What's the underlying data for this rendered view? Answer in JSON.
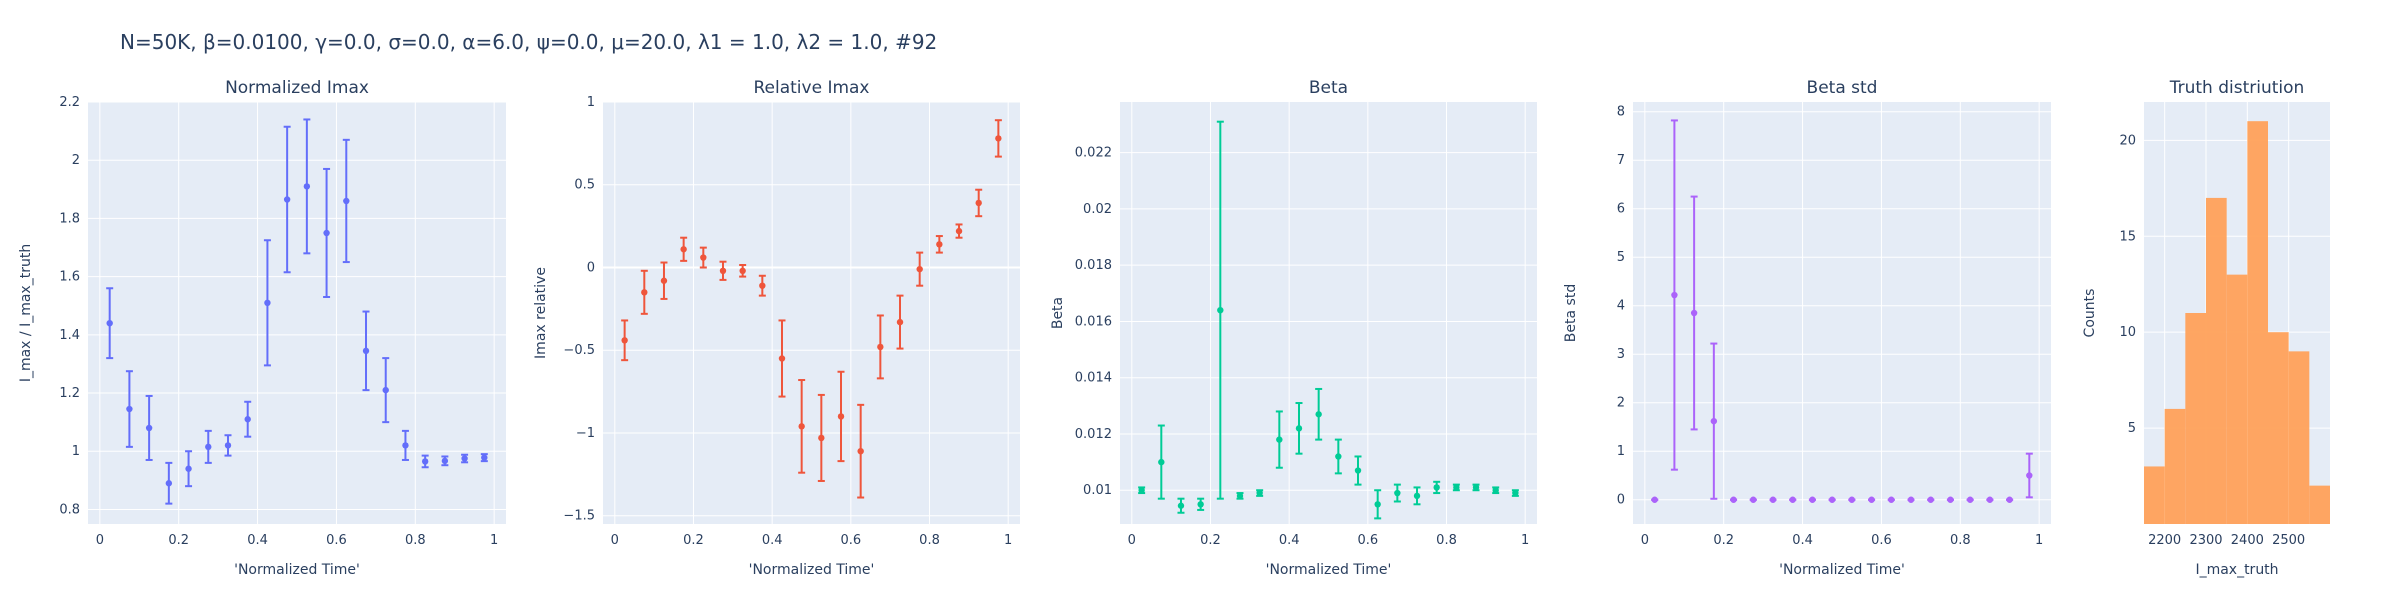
{
  "title": "N=50K, β=0.0100, γ=0.0, σ=0.0,  α=6.0, ψ=0.0, μ=20.0, λ1 = 1.0, λ2 = 1.0, #92",
  "chart_data": [
    {
      "type": "errorbar",
      "title": "Normalized Imax",
      "xlabel": "'Normalized Time'",
      "ylabel": "I_max / I_max_truth",
      "color": "#636efa",
      "xlim": [
        -0.03,
        1.03
      ],
      "ylim": [
        0.75,
        2.2
      ],
      "xticks": [
        0,
        0.2,
        0.4,
        0.6,
        0.8,
        1
      ],
      "xtick_labels": [
        "0",
        "0.2",
        "0.4",
        "0.6",
        "0.8",
        "1"
      ],
      "yticks": [
        0.8,
        1,
        1.2,
        1.4,
        1.6,
        1.8,
        2,
        2.2
      ],
      "ytick_labels": [
        "0.8",
        "1",
        "1.2",
        "1.4",
        "1.6",
        "1.8",
        "2",
        "2.2"
      ],
      "x": [
        0.025,
        0.075,
        0.125,
        0.175,
        0.225,
        0.275,
        0.325,
        0.375,
        0.425,
        0.475,
        0.525,
        0.575,
        0.625,
        0.675,
        0.725,
        0.775,
        0.825,
        0.875,
        0.925,
        0.975
      ],
      "y": [
        1.44,
        1.145,
        1.08,
        0.89,
        0.94,
        1.015,
        1.02,
        1.11,
        1.51,
        1.865,
        1.91,
        1.75,
        1.86,
        1.345,
        1.21,
        1.02,
        0.965,
        0.967,
        0.975,
        0.978
      ],
      "err": [
        0.12,
        0.13,
        0.11,
        0.07,
        0.06,
        0.055,
        0.035,
        0.06,
        0.215,
        0.25,
        0.23,
        0.22,
        0.21,
        0.135,
        0.11,
        0.05,
        0.02,
        0.015,
        0.013,
        0.012
      ]
    },
    {
      "type": "errorbar",
      "title": "Relative Imax",
      "xlabel": "'Normalized Time'",
      "ylabel": "Imax relative",
      "color": "#ef553b",
      "xlim": [
        -0.03,
        1.03
      ],
      "ylim": [
        -1.55,
        1.0
      ],
      "zeroline": true,
      "xticks": [
        0,
        0.2,
        0.4,
        0.6,
        0.8,
        1
      ],
      "xtick_labels": [
        "0",
        "0.2",
        "0.4",
        "0.6",
        "0.8",
        "1"
      ],
      "yticks": [
        -1.5,
        -1,
        -0.5,
        0,
        0.5,
        1
      ],
      "ytick_labels": [
        "−1.5",
        "−1",
        "−0.5",
        "0",
        "0.5",
        "1"
      ],
      "x": [
        0.025,
        0.075,
        0.125,
        0.175,
        0.225,
        0.275,
        0.325,
        0.375,
        0.425,
        0.475,
        0.525,
        0.575,
        0.625,
        0.675,
        0.725,
        0.775,
        0.825,
        0.875,
        0.925,
        0.975
      ],
      "y": [
        -0.44,
        -0.15,
        -0.08,
        0.11,
        0.06,
        -0.02,
        -0.02,
        -0.11,
        -0.55,
        -0.96,
        -1.03,
        -0.9,
        -1.11,
        -0.48,
        -0.33,
        -0.01,
        0.14,
        0.22,
        0.39,
        0.78
      ],
      "err": [
        0.12,
        0.13,
        0.11,
        0.07,
        0.06,
        0.055,
        0.035,
        0.06,
        0.23,
        0.28,
        0.26,
        0.27,
        0.28,
        0.19,
        0.16,
        0.1,
        0.05,
        0.04,
        0.08,
        0.11
      ]
    },
    {
      "type": "errorbar",
      "title": "Beta",
      "xlabel": "'Normalized Time'",
      "ylabel": "Beta",
      "color": "#00cc96",
      "xlim": [
        -0.03,
        1.03
      ],
      "ylim": [
        0.0088,
        0.0238
      ],
      "xticks": [
        0,
        0.2,
        0.4,
        0.6,
        0.8,
        1
      ],
      "xtick_labels": [
        "0",
        "0.2",
        "0.4",
        "0.6",
        "0.8",
        "1"
      ],
      "yticks": [
        0.01,
        0.012,
        0.014,
        0.016,
        0.018,
        0.02,
        0.022
      ],
      "ytick_labels": [
        "0.01",
        "0.012",
        "0.014",
        "0.016",
        "0.018",
        "0.02",
        "0.022"
      ],
      "x": [
        0.025,
        0.075,
        0.125,
        0.175,
        0.225,
        0.275,
        0.325,
        0.375,
        0.425,
        0.475,
        0.525,
        0.575,
        0.625,
        0.675,
        0.725,
        0.775,
        0.825,
        0.875,
        0.925,
        0.975
      ],
      "y": [
        0.01,
        0.011,
        0.00945,
        0.0095,
        0.0164,
        0.0098,
        0.0099,
        0.0118,
        0.0122,
        0.0127,
        0.0112,
        0.0107,
        0.0095,
        0.0099,
        0.0098,
        0.0101,
        0.0101,
        0.0101,
        0.01,
        0.0099
      ],
      "err": [
        0.0001,
        0.0013,
        0.00025,
        0.0002,
        0.0067,
        0.0001,
        0.0001,
        0.001,
        0.0009,
        0.0009,
        0.0006,
        0.0005,
        0.0005,
        0.0003,
        0.0003,
        0.0002,
        0.0001,
        0.0001,
        0.0001,
        0.0001
      ]
    },
    {
      "type": "errorbar",
      "title": "Beta std",
      "xlabel": "'Normalized Time'",
      "ylabel": "Beta std",
      "color": "#ab63fa",
      "xlim": [
        -0.03,
        1.03
      ],
      "ylim": [
        -0.5,
        8.2
      ],
      "xticks": [
        0,
        0.2,
        0.4,
        0.6,
        0.8,
        1
      ],
      "xtick_labels": [
        "0",
        "0.2",
        "0.4",
        "0.6",
        "0.8",
        "1"
      ],
      "yticks": [
        0,
        1,
        2,
        3,
        4,
        5,
        6,
        7,
        8
      ],
      "ytick_labels": [
        "0",
        "1",
        "2",
        "3",
        "4",
        "5",
        "6",
        "7",
        "8"
      ],
      "x": [
        0.025,
        0.075,
        0.125,
        0.175,
        0.225,
        0.275,
        0.325,
        0.375,
        0.425,
        0.475,
        0.525,
        0.575,
        0.625,
        0.675,
        0.725,
        0.775,
        0.825,
        0.875,
        0.925,
        0.975
      ],
      "y": [
        0,
        4.22,
        3.85,
        1.62,
        0,
        0,
        0,
        0,
        0,
        0,
        0,
        0,
        0,
        0,
        0,
        0,
        0,
        0,
        0,
        0.5
      ],
      "err": [
        0,
        3.6,
        2.4,
        1.6,
        0,
        0,
        0,
        0,
        0,
        0,
        0,
        0,
        0,
        0,
        0,
        0,
        0,
        0,
        0,
        0.45
      ]
    },
    {
      "type": "histogram",
      "title": "Truth distriution",
      "xlabel": "I_max_truth",
      "ylabel": "Counts",
      "color": "#ffa15a",
      "xlim": [
        2150,
        2600
      ],
      "ylim": [
        0,
        22
      ],
      "xticks": [
        2200,
        2300,
        2400,
        2500
      ],
      "xtick_labels": [
        "2200",
        "2300",
        "2400",
        "2500"
      ],
      "yticks": [
        5,
        10,
        15,
        20
      ],
      "ytick_labels": [
        "5",
        "10",
        "15",
        "20"
      ],
      "bin_start": 2150,
      "bin_width": 50,
      "counts": [
        3,
        6,
        11,
        17,
        13,
        21,
        10,
        9,
        2
      ]
    }
  ]
}
